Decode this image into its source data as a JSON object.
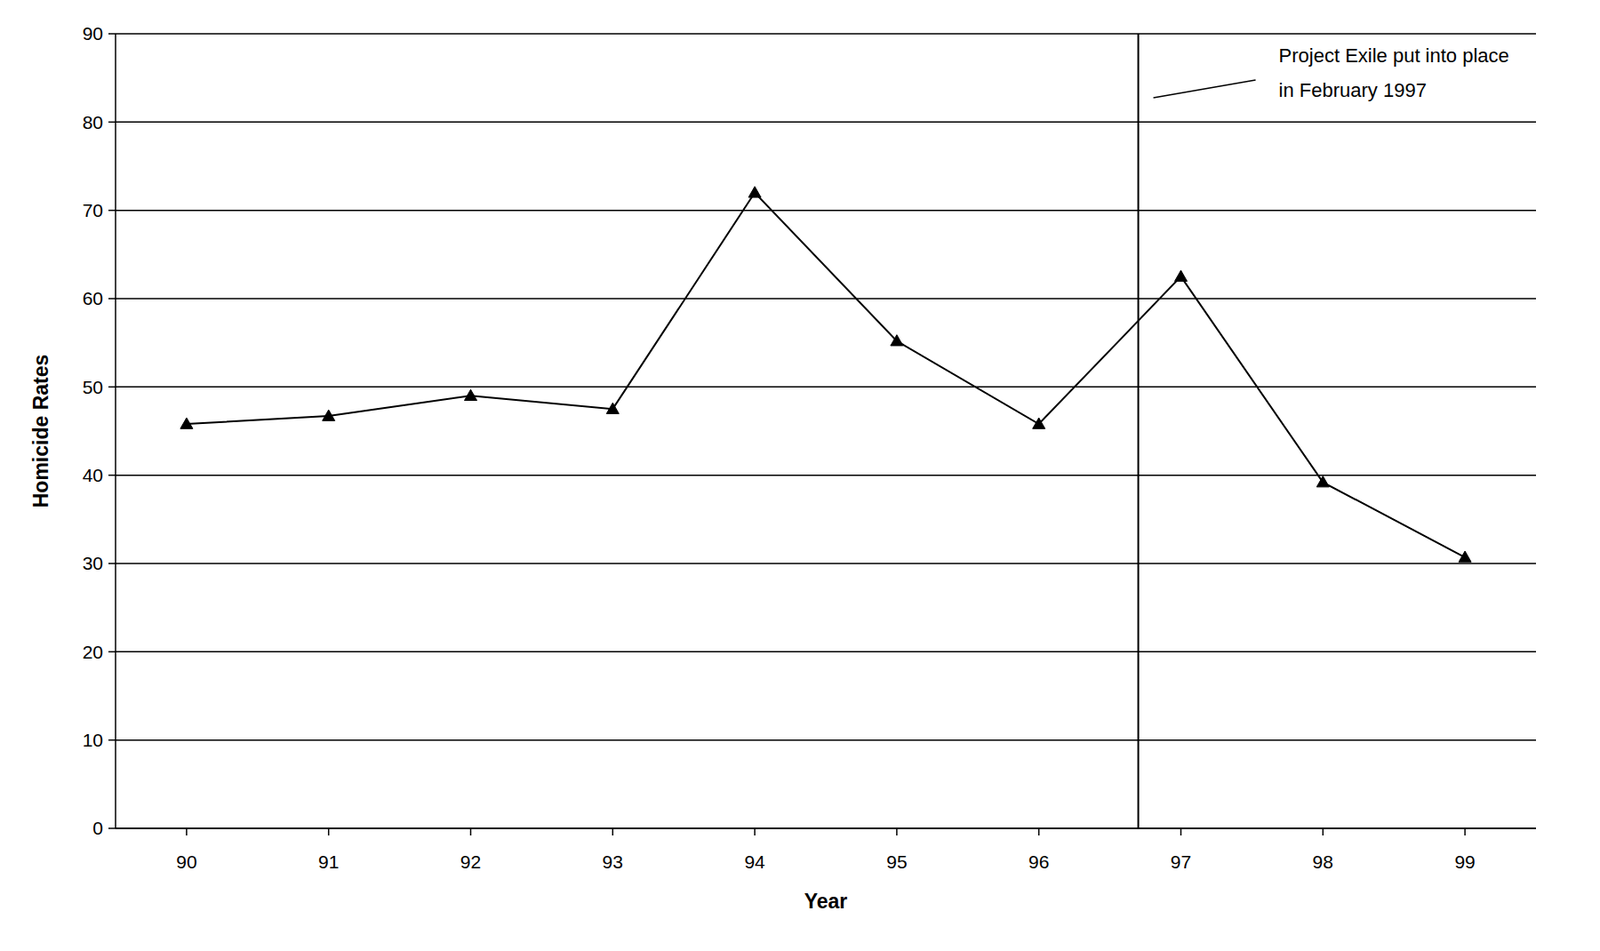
{
  "chart_data": {
    "type": "line",
    "x": [
      90,
      91,
      92,
      93,
      94,
      95,
      96,
      97,
      98,
      99
    ],
    "values": [
      45.8,
      46.7,
      49,
      47.5,
      72,
      55.2,
      45.8,
      62.5,
      39.2,
      30.7
    ],
    "color": "#000000",
    "marker": "triangle",
    "x_label": "Year",
    "y_label": "Homicide Rates",
    "xlim": [
      89.5,
      99.5
    ],
    "xticks": [
      90,
      91,
      92,
      93,
      94,
      95,
      96,
      97,
      98,
      99
    ],
    "ylim": [
      0,
      90
    ],
    "yticks": [
      0,
      10,
      20,
      30,
      40,
      50,
      60,
      70,
      80,
      90
    ],
    "grid": true,
    "annotation": {
      "text": [
        "Project Exile put into place",
        "in February 1997"
      ],
      "x": 96.7
    }
  }
}
